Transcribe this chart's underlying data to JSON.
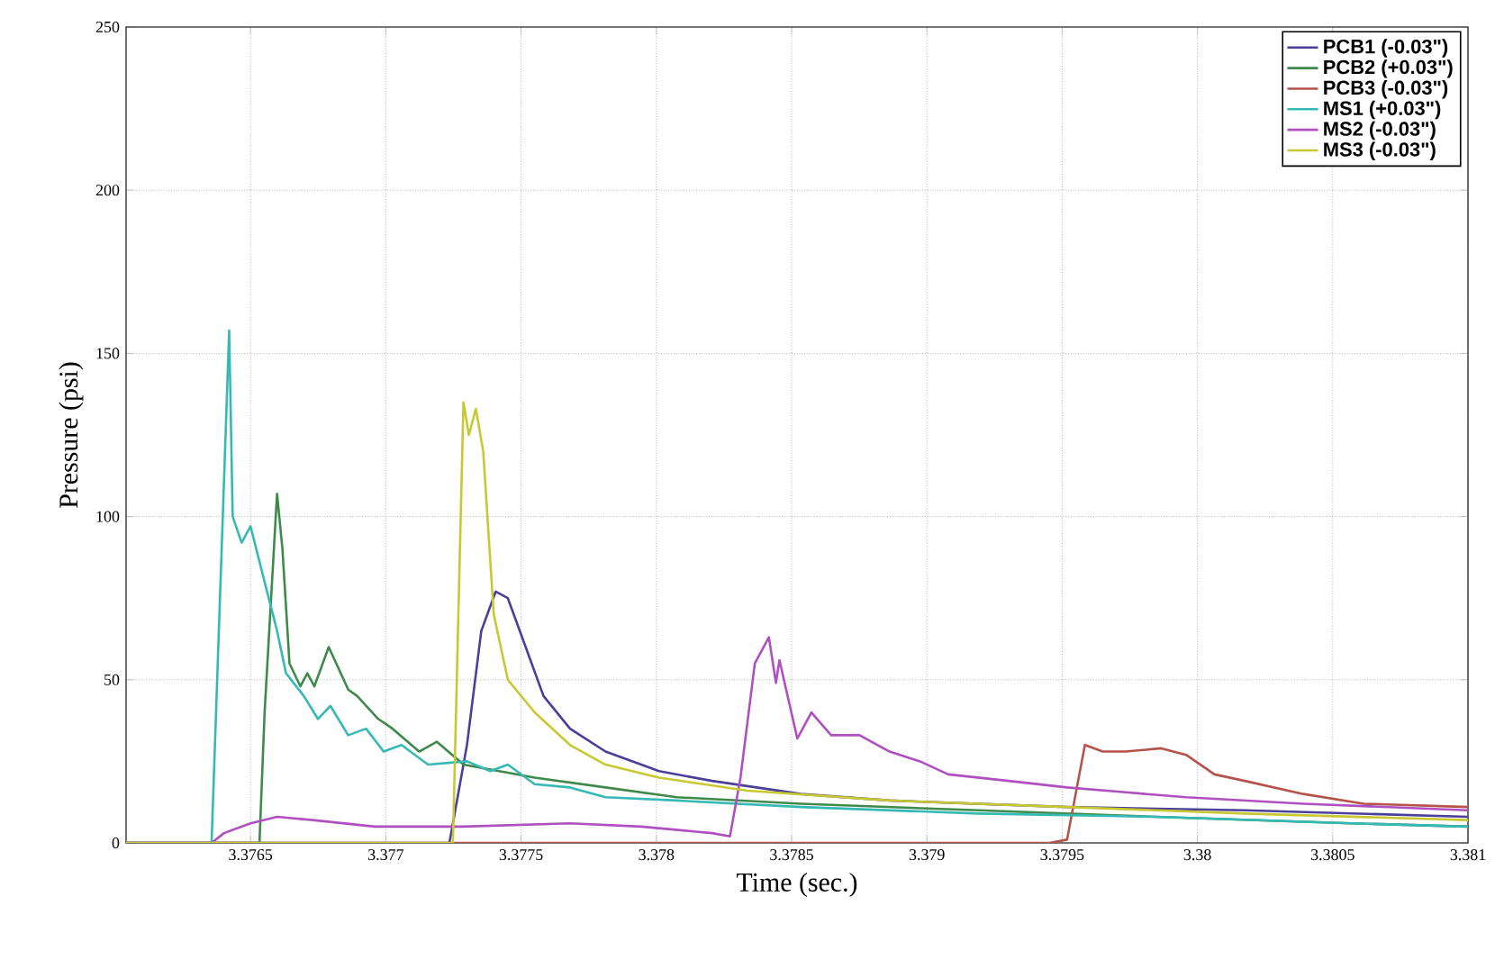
{
  "chart_data": {
    "type": "line",
    "xlabel": "Time (sec.)",
    "ylabel": "Pressure (psi)",
    "xlim": [
      3.37604,
      3.381
    ],
    "ylim": [
      0,
      250
    ],
    "xticks": [
      3.3765,
      3.377,
      3.3775,
      3.378,
      3.3785,
      3.379,
      3.3795,
      3.38,
      3.3805,
      3.381
    ],
    "yticks": [
      0,
      50,
      100,
      150,
      200,
      250
    ],
    "grid": true,
    "legend": "top right",
    "line_style": "solid",
    "series": [
      {
        "name": "PCB1 (-0.03\")",
        "color": "#4a3f9a",
        "x": [
          3.37604,
          3.377235,
          3.3773,
          3.377353,
          3.377406,
          3.377451,
          3.377517,
          3.377583,
          3.377681,
          3.377812,
          3.37801,
          3.378206,
          3.378534,
          3.378862,
          3.379518,
          3.380175,
          3.381
        ],
        "values": [
          0,
          0,
          30,
          65,
          77,
          75,
          60,
          45,
          35,
          28,
          22,
          19,
          15,
          13,
          11,
          10,
          8
        ]
      },
      {
        "name": "PCB2 (+0.03\")",
        "color": "#3e8a4a",
        "x": [
          3.37604,
          3.376533,
          3.376552,
          3.376598,
          3.376618,
          3.376644,
          3.376684,
          3.37671,
          3.376736,
          3.376789,
          3.376861,
          3.376894,
          3.376972,
          3.377025,
          3.377123,
          3.377189,
          3.377287,
          3.377419,
          3.37755,
          3.377812,
          3.378075,
          3.378534,
          3.37919,
          3.379846,
          3.380568,
          3.381
        ],
        "values": [
          0,
          0,
          40,
          107,
          90,
          55,
          48,
          52,
          48,
          60,
          47,
          45,
          38,
          35,
          28,
          31,
          24,
          22,
          20,
          17,
          14,
          12,
          10,
          8,
          6,
          5
        ]
      },
      {
        "name": "PCB3 (-0.03\")",
        "color": "#b5524a",
        "x": [
          3.37604,
          3.379453,
          3.379518,
          3.379584,
          3.37965,
          3.379735,
          3.379866,
          3.379958,
          3.380063,
          3.380175,
          3.380391,
          3.380614,
          3.381
        ],
        "values": [
          0,
          0,
          1,
          30,
          28,
          28,
          29,
          27,
          21,
          19,
          15,
          12,
          11
        ]
      },
      {
        "name": "MS1 (+0.03\")",
        "color": "#35b9b5",
        "x": [
          3.37604,
          3.376356,
          3.376421,
          3.376434,
          3.376467,
          3.3765,
          3.376552,
          3.376598,
          3.376631,
          3.376697,
          3.376749,
          3.376795,
          3.376861,
          3.376927,
          3.376992,
          3.377058,
          3.377156,
          3.3773,
          3.377386,
          3.377451,
          3.37755,
          3.377681,
          3.377812,
          3.378075,
          3.378534,
          3.37919,
          3.379846,
          3.380568,
          3.381
        ],
        "values": [
          0,
          0,
          157,
          100,
          92,
          97,
          80,
          65,
          52,
          45,
          38,
          42,
          33,
          35,
          28,
          30,
          24,
          25,
          22,
          24,
          18,
          17,
          14,
          13,
          11,
          9,
          8,
          6,
          5
        ]
      },
      {
        "name": "MS2 (-0.03\")",
        "color": "#b050c0",
        "x": [
          3.37604,
          3.376356,
          3.376402,
          3.3765,
          3.376598,
          3.37673,
          3.376959,
          3.377287,
          3.377681,
          3.377944,
          3.378206,
          3.378272,
          3.378311,
          3.378364,
          3.378416,
          3.378442,
          3.378455,
          3.378521,
          3.378573,
          3.378646,
          3.378751,
          3.378862,
          3.378974,
          3.379079,
          3.379302,
          3.379518,
          3.379735,
          3.379958,
          3.380391,
          3.381
        ],
        "values": [
          0,
          0,
          3,
          6,
          8,
          7,
          5,
          5,
          6,
          5,
          3,
          2,
          20,
          55,
          63,
          49,
          56,
          32,
          40,
          33,
          33,
          28,
          25,
          21,
          19,
          17,
          15.5,
          14,
          12,
          10
        ]
      },
      {
        "name": "MS3 (-0.03\")",
        "color": "#c8c832",
        "x": [
          3.37604,
          3.377248,
          3.377287,
          3.377307,
          3.377333,
          3.37736,
          3.377399,
          3.377451,
          3.37755,
          3.377681,
          3.377812,
          3.37801,
          3.378337,
          3.378862,
          3.379518,
          3.380175,
          3.381
        ],
        "values": [
          0,
          0,
          135,
          125,
          133,
          120,
          70,
          50,
          40,
          30,
          24,
          20,
          16,
          13,
          11,
          9,
          7
        ]
      }
    ]
  }
}
